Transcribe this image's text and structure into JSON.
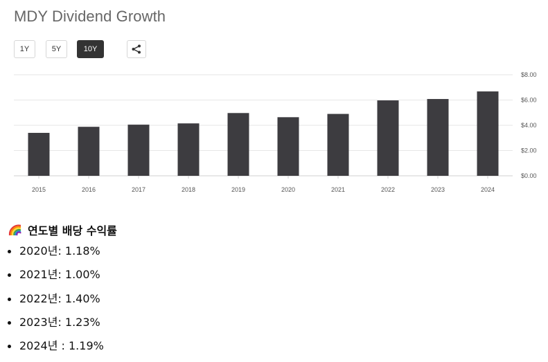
{
  "title": "MDY Dividend Growth",
  "range_buttons": [
    {
      "label": "1Y",
      "active": false
    },
    {
      "label": "5Y",
      "active": false
    },
    {
      "label": "10Y",
      "active": true
    }
  ],
  "share_icon": "share-icon",
  "chart_data": {
    "type": "bar",
    "categories": [
      "2015",
      "2016",
      "2017",
      "2018",
      "2019",
      "2020",
      "2021",
      "2022",
      "2023",
      "2024"
    ],
    "values": [
      3.4,
      3.88,
      4.05,
      4.15,
      4.97,
      4.64,
      4.9,
      5.97,
      6.08,
      6.68
    ],
    "y_ticks": [
      "$8.00",
      "$6.00",
      "$4.00",
      "$2.00",
      "$0.00"
    ],
    "ylim": [
      0,
      8
    ],
    "title": "",
    "xlabel": "",
    "ylabel": "",
    "bar_color": "#3d3c40",
    "grid": true,
    "y_axis_position": "right"
  },
  "section_title": "연도별 배당 수익률",
  "section_icon": "rainbow-icon",
  "yields": [
    "2020년: 1.18%",
    "2021년: 1.00%",
    "2022년: 1.40%",
    "2023년: 1.23%",
    "2024년 : 1.19%"
  ]
}
